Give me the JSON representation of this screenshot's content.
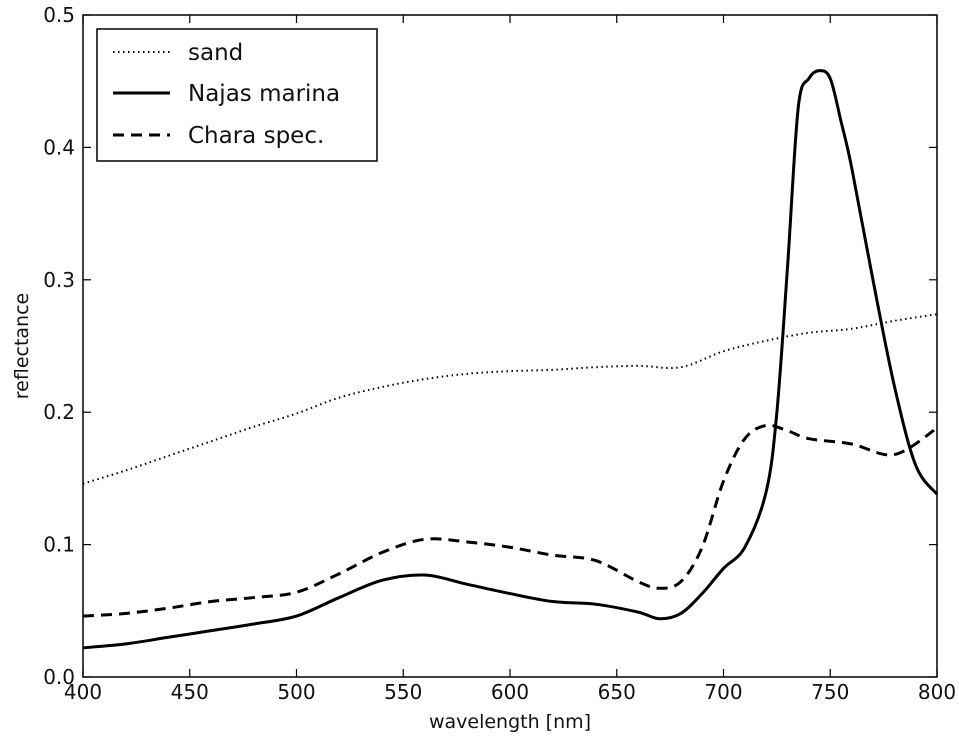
{
  "chart_data": {
    "type": "line",
    "title": "",
    "xlabel": "wavelength [nm]",
    "ylabel": "reflectance",
    "xlim": [
      400,
      800
    ],
    "ylim": [
      0.0,
      0.5
    ],
    "x_ticks": [
      400,
      450,
      500,
      550,
      600,
      650,
      700,
      750,
      800
    ],
    "x_tick_labels": [
      "400",
      "450",
      "500",
      "550",
      "600",
      "650",
      "700",
      "750",
      "800"
    ],
    "y_ticks": [
      0.0,
      0.1,
      0.2,
      0.3,
      0.4,
      0.5
    ],
    "y_tick_labels": [
      "0.0",
      "0.1",
      "0.2",
      "0.3",
      "0.4",
      "0.5"
    ],
    "grid": false,
    "legend_position": "top-left",
    "series": [
      {
        "name": "sand",
        "style": "dotted",
        "color": "#000000",
        "x": [
          400,
          420,
          440,
          460,
          480,
          500,
          520,
          540,
          560,
          580,
          600,
          620,
          640,
          660,
          680,
          700,
          720,
          740,
          760,
          780,
          800
        ],
        "y": [
          0.146,
          0.156,
          0.167,
          0.178,
          0.189,
          0.199,
          0.211,
          0.219,
          0.225,
          0.229,
          0.231,
          0.232,
          0.234,
          0.235,
          0.234,
          0.246,
          0.254,
          0.26,
          0.263,
          0.269,
          0.274
        ]
      },
      {
        "name": "Najas marina",
        "style": "solid",
        "color": "#000000",
        "x": [
          400,
          420,
          440,
          460,
          480,
          500,
          520,
          540,
          560,
          580,
          600,
          620,
          640,
          660,
          670,
          680,
          690,
          700,
          710,
          720,
          725,
          730,
          735,
          740,
          745,
          750,
          755,
          760,
          770,
          780,
          790,
          800
        ],
        "y": [
          0.022,
          0.025,
          0.03,
          0.035,
          0.04,
          0.046,
          0.06,
          0.073,
          0.077,
          0.07,
          0.063,
          0.057,
          0.055,
          0.049,
          0.044,
          0.048,
          0.063,
          0.082,
          0.098,
          0.14,
          0.2,
          0.31,
          0.43,
          0.452,
          0.458,
          0.452,
          0.42,
          0.385,
          0.3,
          0.22,
          0.16,
          0.138
        ]
      },
      {
        "name": "Chara spec.",
        "style": "dashed",
        "color": "#000000",
        "x": [
          400,
          420,
          440,
          460,
          480,
          500,
          520,
          540,
          560,
          580,
          600,
          620,
          640,
          660,
          670,
          680,
          690,
          700,
          710,
          720,
          730,
          740,
          760,
          780,
          800
        ],
        "y": [
          0.046,
          0.048,
          0.052,
          0.057,
          0.06,
          0.064,
          0.078,
          0.094,
          0.104,
          0.102,
          0.098,
          0.092,
          0.088,
          0.072,
          0.067,
          0.072,
          0.098,
          0.148,
          0.18,
          0.19,
          0.186,
          0.18,
          0.176,
          0.168,
          0.188
        ]
      }
    ]
  }
}
